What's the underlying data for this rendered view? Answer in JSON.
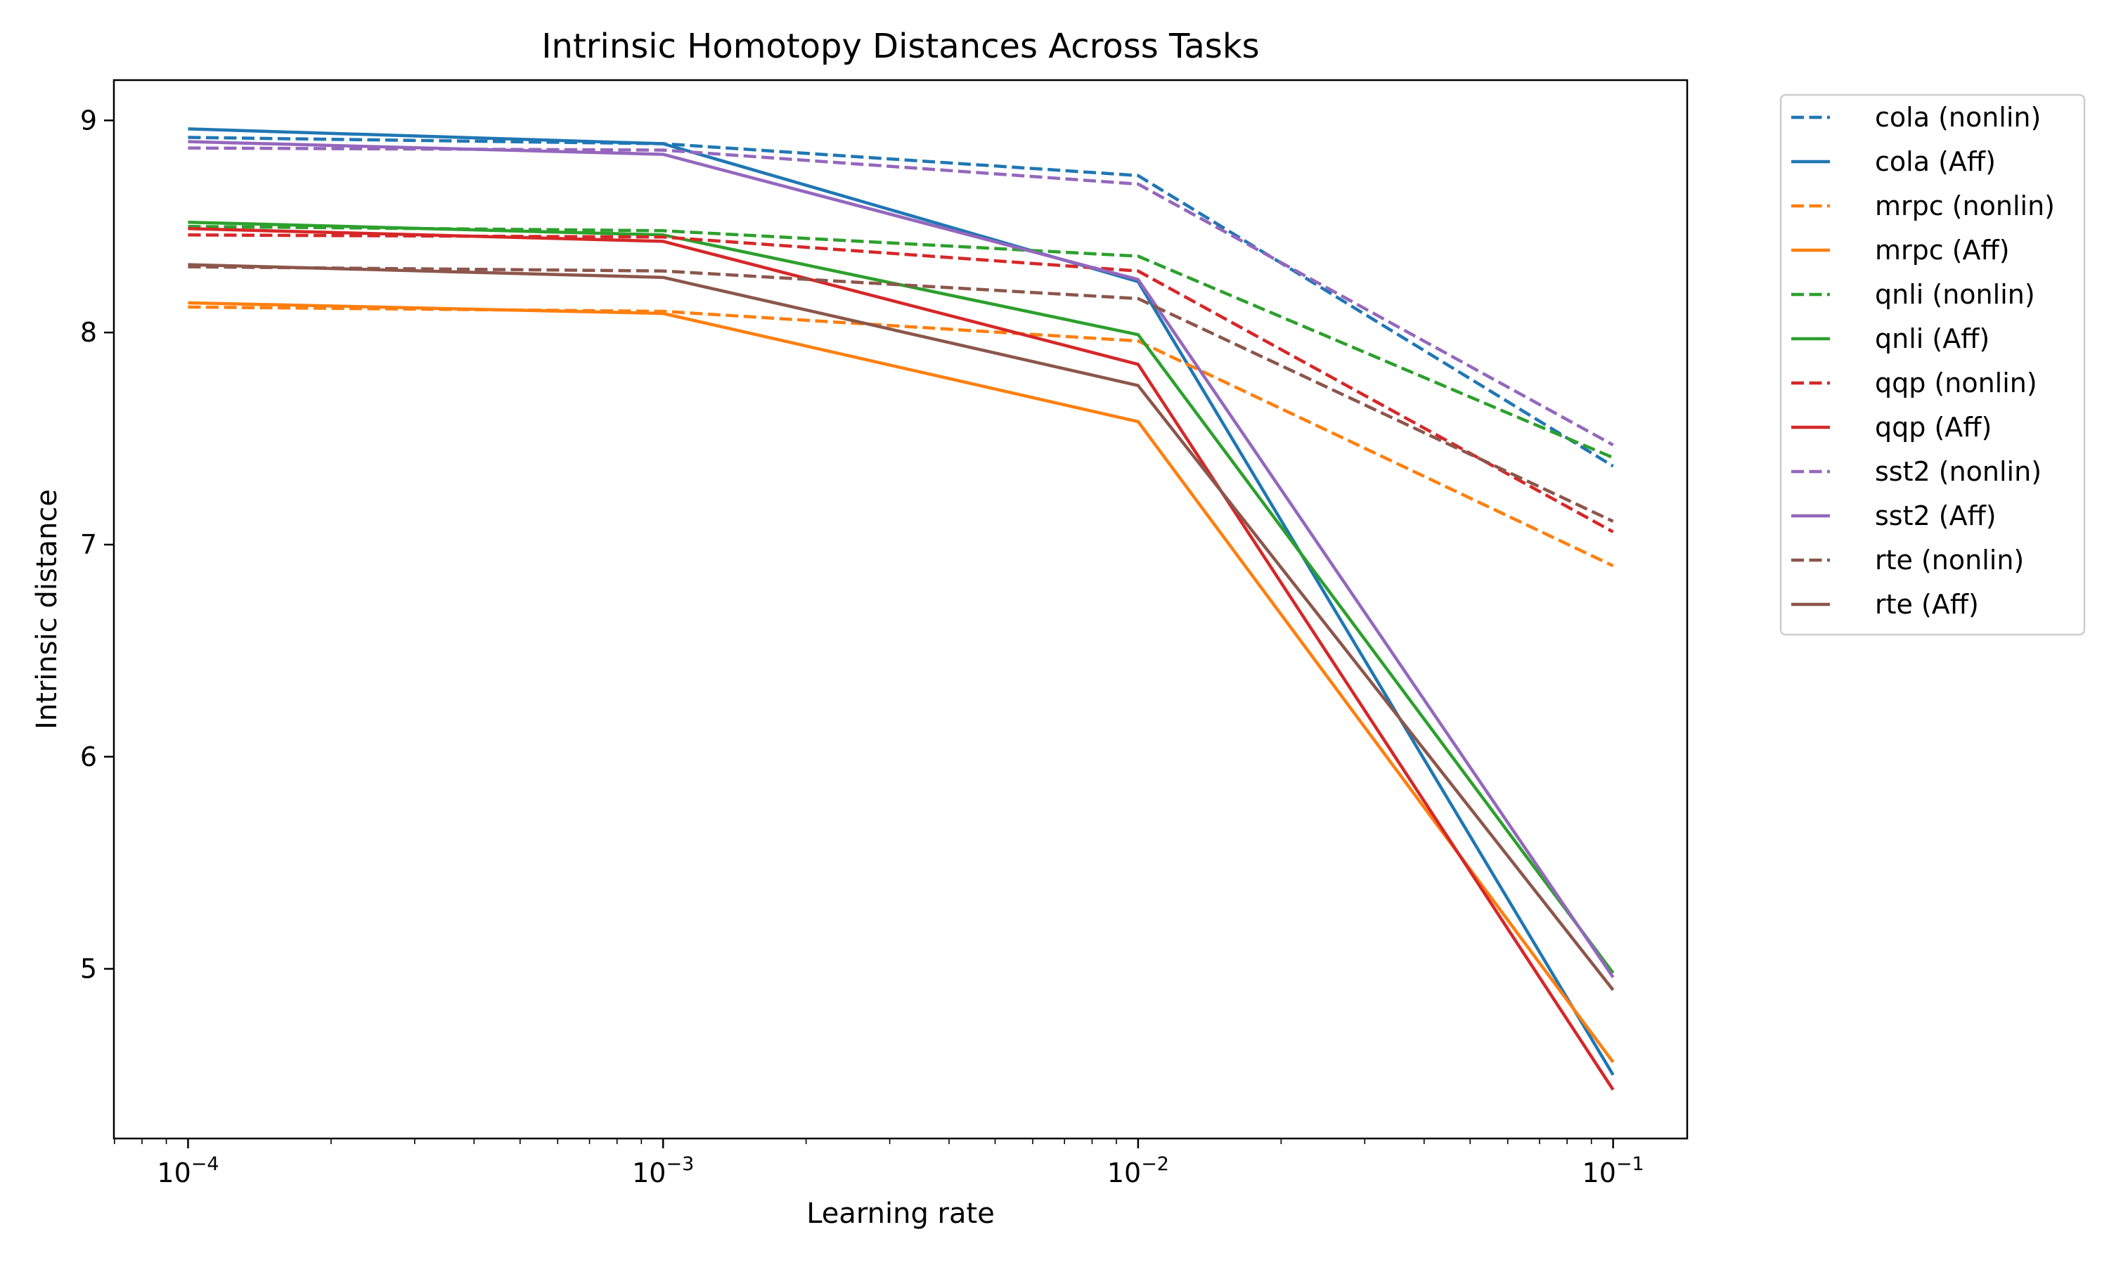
{
  "chart_data": {
    "type": "line",
    "title": "Intrinsic Homotopy Distances Across Tasks",
    "xlabel": "Learning rate",
    "ylabel": "Intrinsic distance",
    "x_scale": "log",
    "x": [
      0.0001,
      0.001,
      0.01,
      0.1
    ],
    "x_tick_labels": [
      {
        "base": "10",
        "exp": "−4"
      },
      {
        "base": "10",
        "exp": "−3"
      },
      {
        "base": "10",
        "exp": "−2"
      },
      {
        "base": "10",
        "exp": "−1"
      }
    ],
    "y_ticks": [
      5,
      6,
      7,
      8,
      9
    ],
    "y_tick_labels": [
      "5",
      "6",
      "7",
      "8",
      "9"
    ],
    "xlim": [
      6.98e-05,
      0.1432
    ],
    "ylim": [
      4.2,
      9.19
    ],
    "grid": false,
    "legend_position": "outside-right-top",
    "series": [
      {
        "name": "cola (nonlin)",
        "color": "#1f77b4",
        "style": "dashed",
        "values": [
          8.92,
          8.89,
          8.74,
          7.37
        ]
      },
      {
        "name": "cola (Aff)",
        "color": "#1f77b4",
        "style": "solid",
        "values": [
          8.96,
          8.89,
          8.24,
          4.5
        ]
      },
      {
        "name": "mrpc (nonlin)",
        "color": "#ff7f0e",
        "style": "dashed",
        "values": [
          8.12,
          8.1,
          7.96,
          6.9
        ]
      },
      {
        "name": "mrpc (Aff)",
        "color": "#ff7f0e",
        "style": "solid",
        "values": [
          8.14,
          8.09,
          7.58,
          4.56
        ]
      },
      {
        "name": "qnli (nonlin)",
        "color": "#2ca02c",
        "style": "dashed",
        "values": [
          8.5,
          8.48,
          8.36,
          7.41
        ]
      },
      {
        "name": "qnli (Aff)",
        "color": "#2ca02c",
        "style": "solid",
        "values": [
          8.52,
          8.46,
          7.99,
          4.98
        ]
      },
      {
        "name": "qqp (nonlin)",
        "color": "#d62728",
        "style": "dashed",
        "values": [
          8.46,
          8.45,
          8.29,
          7.06
        ]
      },
      {
        "name": "qqp (Aff)",
        "color": "#d62728",
        "style": "solid",
        "values": [
          8.49,
          8.43,
          7.85,
          4.43
        ]
      },
      {
        "name": "sst2 (nonlin)",
        "color": "#9467bd",
        "style": "dashed",
        "values": [
          8.87,
          8.86,
          8.7,
          7.47
        ]
      },
      {
        "name": "sst2 (Aff)",
        "color": "#9467bd",
        "style": "solid",
        "values": [
          8.9,
          8.84,
          8.25,
          4.96
        ]
      },
      {
        "name": "rte (nonlin)",
        "color": "#8c564b",
        "style": "dashed",
        "values": [
          8.31,
          8.29,
          8.16,
          7.11
        ]
      },
      {
        "name": "rte (Aff)",
        "color": "#8c564b",
        "style": "solid",
        "values": [
          8.32,
          8.26,
          7.75,
          4.9
        ]
      }
    ]
  }
}
